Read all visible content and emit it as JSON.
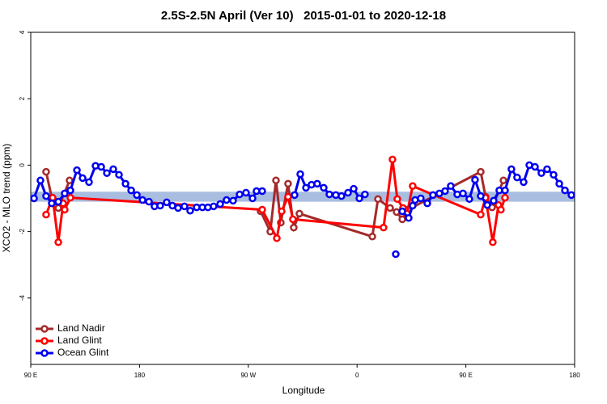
{
  "chart_data": {
    "type": "line",
    "title": "2.5S-2.5N April (Ver 10)   2015-01-01 to 2020-12-18",
    "x_label": "Longitude",
    "y_label": "XCO2 - MLO trend (ppm)",
    "xlim": [
      90,
      540
    ],
    "xticks": [
      {
        "value": 90,
        "label": "90 E"
      },
      180,
      {
        "value": 270,
        "label": "90 W"
      },
      {
        "value": 360,
        "label": "0"
      },
      {
        "value": 450,
        "label": "90 E"
      },
      {
        "value": 540,
        "label": "180"
      }
    ],
    "ylim": [
      -6,
      4
    ],
    "yticks": [
      -4,
      -2,
      0,
      2,
      4
    ],
    "band": [
      -1.1,
      -0.8
    ],
    "band_color": "#a8bde0",
    "legend": "bottom-left",
    "series": [
      {
        "name": "Land Nadir",
        "color": "#a52a2a",
        "x": [
          102.7,
          107.4,
          112.8,
          122.1,
          132.9,
          280.2,
          288.2,
          292.9,
          296.9,
          302.9,
          307.6,
          312.3,
          372.6,
          377.3,
          387.3,
          392.7,
          397.4,
          402,
          462.3,
          466.3,
          471.7,
          481.1,
          492.4
        ],
        "values": [
          -0.2,
          -0.98,
          -1.29,
          -0.46,
          null,
          -1.39,
          -2.0,
          -0.46,
          -1.73,
          -0.56,
          -1.88,
          -1.46,
          -2.15,
          -1.02,
          -1.29,
          -1.41,
          -1.63,
          -1.34,
          -0.2,
          -0.95,
          -1.27,
          -0.46,
          null
        ]
      },
      {
        "name": "Land Glint",
        "color": "#ff0000",
        "x": [
          102.7,
          108.1,
          112.8,
          116.8,
          118.1,
          122.8,
          281.5,
          293.6,
          297.6,
          302.9,
          306.9,
          381.9,
          389.3,
          393.3,
          398,
          401.3,
          406,
          462.3,
          466.3,
          472.3,
          477,
          479,
          482.4
        ],
        "values": [
          -1.49,
          -0.98,
          -2.32,
          -1.15,
          -1.34,
          -0.98,
          -1.34,
          -2.2,
          -1.39,
          -0.95,
          -1.63,
          -1.88,
          0.17,
          -1.02,
          -1.29,
          -1.46,
          -0.63,
          -1.49,
          -0.98,
          -2.32,
          -1.2,
          -1.34,
          -0.98
        ]
      },
      {
        "name": "Ocean Glint",
        "color": "#0000ee",
        "x": [
          92.7,
          98,
          102.7,
          107.4,
          112.8,
          118.1,
          122.8,
          128.2,
          132.9,
          138.2,
          143.6,
          148.3,
          153,
          158.3,
          163,
          168.4,
          173.1,
          177.8,
          182.5,
          187.8,
          192.4,
          197.1,
          202.5,
          207.2,
          211.9,
          217.2,
          221.9,
          227.3,
          232,
          236.6,
          241.3,
          246.7,
          252,
          257.4,
          262.8,
          268.1,
          273.5,
          276.8,
          281.5,
          295,
          308.3,
          313,
          317.7,
          322.3,
          327,
          332.4,
          337.1,
          342.4,
          347.1,
          352.5,
          357.2,
          361.9,
          366.5,
          380,
          392,
          395,
          397.4,
          402.7,
          406,
          408,
          412.7,
          418.1,
          422.8,
          428.1,
          432.8,
          437.5,
          442.9,
          447.6,
          452.9,
          457.6,
          462.3,
          467.7,
          473,
          477.7,
          482.4,
          487.7,
          492.4,
          497.8,
          502.5,
          507.2,
          512.5,
          517.2,
          522.6,
          527.3,
          532,
          537.3
        ],
        "values": [
          -1.0,
          -0.46,
          -0.93,
          -1.15,
          -1.1,
          -0.85,
          -0.76,
          -0.15,
          -0.39,
          -0.51,
          -0.02,
          -0.05,
          -0.24,
          -0.12,
          -0.29,
          -0.56,
          -0.76,
          -0.9,
          -1.05,
          -1.1,
          -1.24,
          -1.22,
          -1.12,
          -1.22,
          -1.29,
          -1.24,
          -1.37,
          -1.27,
          -1.27,
          -1.27,
          -1.24,
          -1.17,
          -1.05,
          -1.07,
          -0.88,
          -0.83,
          -1.0,
          -0.78,
          -0.78,
          null,
          -0.9,
          -0.27,
          -0.68,
          -0.59,
          -0.56,
          -0.68,
          -0.88,
          -0.9,
          -0.93,
          -0.83,
          -0.71,
          -1.0,
          -0.88,
          null,
          -2.68,
          null,
          -1.39,
          -1.59,
          -1.22,
          -1.05,
          -1.0,
          -1.15,
          -0.9,
          -0.85,
          -0.78,
          -0.63,
          -0.88,
          -0.85,
          -1.02,
          -0.44,
          -0.93,
          -1.2,
          -1.07,
          -0.76,
          -0.76,
          -0.12,
          -0.37,
          -0.51,
          0,
          -0.05,
          -0.24,
          -0.12,
          -0.29,
          -0.56,
          -0.76,
          -0.9
        ]
      }
    ]
  }
}
